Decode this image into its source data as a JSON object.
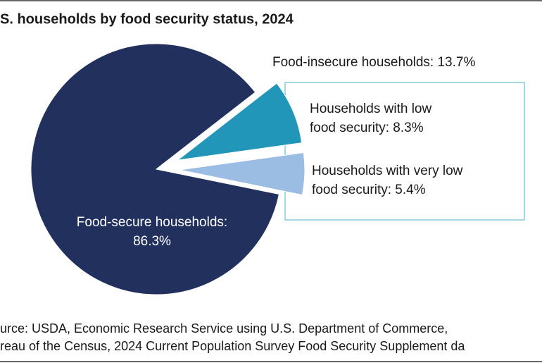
{
  "chart_data": {
    "type": "pie",
    "title": "S. households by food security status, 2024",
    "categories": [
      [
        "Food-secure households:",
        "86.3%"
      ],
      [
        "Households with low",
        "food security: 8.3%"
      ],
      [
        "Households with very low",
        "food security: 5.4%"
      ]
    ],
    "values": [
      86.3,
      8.3,
      5.4
    ],
    "colors": [
      "#22305e",
      "#2196b9",
      "#9bbde3"
    ],
    "annotation": "Food-insecure households: 13.7%",
    "source": [
      "urce: USDA, Economic Research Service using U.S. Department of Commerce,",
      "reau of the Census, 2024 Current Population Survey Food Security Supplement da"
    ]
  }
}
